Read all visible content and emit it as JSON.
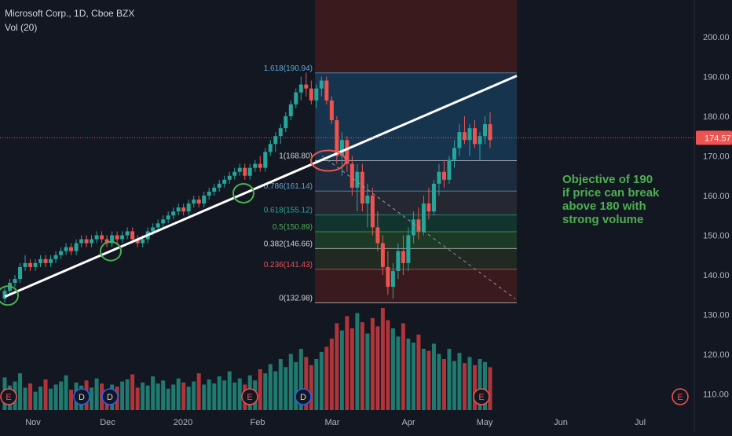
{
  "header": {
    "symbol_line": "Microsoft Corp., 1D, Cboe BZX",
    "volume_label": "Vol (20)"
  },
  "annotation": {
    "lines": [
      "Objective of 190",
      "if price can break",
      "above 180 with",
      "strong volume"
    ]
  },
  "colors": {
    "background": "#131722",
    "up": "#26a69a",
    "down": "#ef5350",
    "vol_up": "#1f7a6f",
    "vol_down": "#b0343a",
    "trendline": "#ffffff",
    "circle": "#4caf50",
    "price_line": "#ef5350",
    "annotation": "#4caf50"
  },
  "chart_data": {
    "type": "candlestick",
    "y_range": [
      105,
      210
    ],
    "y_ticks": [
      "200.00",
      "190.00",
      "180.00",
      "170.00",
      "160.00",
      "150.00",
      "140.00",
      "130.00",
      "120.00",
      "110.00"
    ],
    "y_tick_values": [
      200,
      190,
      180,
      170,
      160,
      150,
      140,
      130,
      120,
      110
    ],
    "x_ticks": [
      "Nov",
      "Dec",
      "2020",
      "Feb",
      "Mar",
      "Apr",
      "May",
      "Jun",
      "Jul"
    ],
    "last_price": "174.57",
    "last_price_value": 174.57,
    "fib_levels": [
      {
        "label": "1.618(190.94)",
        "value": 190.94,
        "band": "#17344f",
        "text": "#5fa8d3"
      },
      {
        "label": "1(168.80)",
        "value": 168.8,
        "band": "#1e2a3d",
        "text": "#d1d4dc"
      },
      {
        "label": "0.786(161.14)",
        "value": 161.14,
        "band": "#252830",
        "text": "#5fa8d3"
      },
      {
        "label": "0.618(155.12)",
        "value": 155.12,
        "band": "#11342f",
        "text": "#26a69a"
      },
      {
        "label": "0.5(150.89)",
        "value": 150.89,
        "band": "#1c3a25",
        "text": "#4caf50"
      },
      {
        "label": "0.382(146.66)",
        "value": 146.66,
        "band": "#202a22",
        "text": "#d1d4dc"
      },
      {
        "label": "0.236(141.43)",
        "value": 141.43,
        "band": "#3a1a1c",
        "text": "#ef5350"
      },
      {
        "label": "0(132.98)",
        "value": 132.98,
        "band": "#3a1a1c",
        "text": "#d1d4dc"
      }
    ],
    "candles": [
      [
        134,
        137,
        133,
        136
      ],
      [
        136,
        139,
        135,
        138
      ],
      [
        138,
        140,
        137,
        139
      ],
      [
        139,
        143,
        138,
        142
      ],
      [
        142,
        145,
        141,
        143
      ],
      [
        143,
        144,
        141,
        142
      ],
      [
        142,
        144,
        141,
        143
      ],
      [
        143,
        145,
        142,
        144
      ],
      [
        144,
        145,
        142,
        143
      ],
      [
        143,
        145,
        142,
        144
      ],
      [
        144,
        146,
        143,
        145
      ],
      [
        145,
        147,
        144,
        146
      ],
      [
        146,
        148,
        145,
        147
      ],
      [
        147,
        148,
        145,
        146
      ],
      [
        146,
        149,
        145,
        148
      ],
      [
        148,
        150,
        147,
        149
      ],
      [
        149,
        150,
        147,
        148
      ],
      [
        148,
        150,
        147,
        149
      ],
      [
        149,
        151,
        148,
        150
      ],
      [
        150,
        151,
        148,
        149
      ],
      [
        149,
        150,
        147,
        148
      ],
      [
        148,
        151,
        147,
        150
      ],
      [
        150,
        151,
        148,
        149
      ],
      [
        149,
        151,
        148,
        150
      ],
      [
        150,
        152,
        149,
        151
      ],
      [
        151,
        152,
        148,
        149
      ],
      [
        149,
        150,
        147,
        148
      ],
      [
        148,
        150,
        147,
        149
      ],
      [
        149,
        152,
        148,
        151
      ],
      [
        151,
        153,
        150,
        152
      ],
      [
        152,
        154,
        151,
        153
      ],
      [
        153,
        155,
        152,
        154
      ],
      [
        154,
        156,
        153,
        155
      ],
      [
        155,
        157,
        154,
        156
      ],
      [
        156,
        158,
        155,
        157
      ],
      [
        157,
        158,
        155,
        156
      ],
      [
        156,
        159,
        155,
        158
      ],
      [
        158,
        160,
        157,
        159
      ],
      [
        159,
        160,
        157,
        158
      ],
      [
        158,
        161,
        157,
        160
      ],
      [
        160,
        162,
        159,
        161
      ],
      [
        161,
        163,
        160,
        162
      ],
      [
        162,
        164,
        161,
        163
      ],
      [
        163,
        165,
        162,
        164
      ],
      [
        164,
        166,
        163,
        165
      ],
      [
        165,
        167,
        164,
        166
      ],
      [
        166,
        168,
        165,
        167
      ],
      [
        167,
        168,
        164,
        165
      ],
      [
        165,
        168,
        164,
        167
      ],
      [
        167,
        169,
        166,
        168
      ],
      [
        168,
        170,
        166,
        167
      ],
      [
        167,
        172,
        166,
        171
      ],
      [
        171,
        174,
        170,
        173
      ],
      [
        173,
        176,
        171,
        175
      ],
      [
        175,
        178,
        173,
        177
      ],
      [
        177,
        181,
        176,
        180
      ],
      [
        180,
        184,
        179,
        183
      ],
      [
        183,
        187,
        182,
        186
      ],
      [
        186,
        190,
        184,
        188
      ],
      [
        188,
        191,
        185,
        187
      ],
      [
        187,
        189,
        183,
        184
      ],
      [
        184,
        188,
        182,
        187
      ],
      [
        187,
        190,
        185,
        189
      ],
      [
        189,
        190,
        183,
        184
      ],
      [
        184,
        185,
        178,
        179
      ],
      [
        179,
        180,
        168,
        170
      ],
      [
        170,
        176,
        165,
        174
      ],
      [
        174,
        175,
        166,
        168
      ],
      [
        168,
        170,
        160,
        162
      ],
      [
        162,
        168,
        156,
        166
      ],
      [
        166,
        168,
        156,
        158
      ],
      [
        158,
        163,
        152,
        160
      ],
      [
        160,
        162,
        150,
        152
      ],
      [
        152,
        156,
        146,
        148
      ],
      [
        148,
        150,
        140,
        142
      ],
      [
        142,
        146,
        135,
        137
      ],
      [
        137,
        143,
        134,
        141
      ],
      [
        141,
        148,
        139,
        146
      ],
      [
        146,
        150,
        140,
        143
      ],
      [
        143,
        152,
        141,
        150
      ],
      [
        150,
        156,
        148,
        154
      ],
      [
        154,
        157,
        149,
        151
      ],
      [
        151,
        160,
        150,
        158
      ],
      [
        158,
        162,
        154,
        156
      ],
      [
        156,
        164,
        155,
        163
      ],
      [
        163,
        168,
        160,
        166
      ],
      [
        166,
        169,
        162,
        164
      ],
      [
        164,
        170,
        163,
        169
      ],
      [
        169,
        174,
        167,
        172
      ],
      [
        172,
        178,
        170,
        176
      ],
      [
        176,
        180,
        173,
        174
      ],
      [
        174,
        178,
        170,
        177
      ],
      [
        177,
        179,
        172,
        173
      ],
      [
        173,
        176,
        169,
        175
      ],
      [
        175,
        180,
        173,
        178
      ],
      [
        178,
        181,
        172,
        174
      ]
    ],
    "volumes": [
      0.32,
      0.24,
      0.28,
      0.36,
      0.22,
      0.26,
      0.18,
      0.23,
      0.3,
      0.21,
      0.25,
      0.28,
      0.34,
      0.2,
      0.27,
      0.24,
      0.29,
      0.22,
      0.31,
      0.26,
      0.19,
      0.25,
      0.23,
      0.28,
      0.3,
      0.35,
      0.22,
      0.27,
      0.24,
      0.33,
      0.26,
      0.29,
      0.21,
      0.25,
      0.31,
      0.27,
      0.23,
      0.28,
      0.36,
      0.25,
      0.3,
      0.26,
      0.33,
      0.29,
      0.38,
      0.27,
      0.31,
      0.25,
      0.34,
      0.29,
      0.4,
      0.36,
      0.45,
      0.38,
      0.5,
      0.42,
      0.55,
      0.47,
      0.6,
      0.52,
      0.44,
      0.5,
      0.57,
      0.62,
      0.7,
      0.85,
      0.78,
      0.92,
      0.8,
      0.95,
      0.86,
      0.75,
      0.9,
      0.82,
      1.0,
      0.88,
      0.8,
      0.72,
      0.85,
      0.7,
      0.66,
      0.74,
      0.6,
      0.58,
      0.65,
      0.55,
      0.5,
      0.6,
      0.48,
      0.56,
      0.46,
      0.52,
      0.44,
      0.5,
      0.47,
      0.42
    ],
    "event_markers": [
      {
        "label": "E",
        "kind": "earnings"
      },
      {
        "label": "D",
        "kind": "dividend"
      },
      {
        "label": "D",
        "kind": "dividend"
      },
      {
        "label": "E",
        "kind": "earnings"
      },
      {
        "label": "D",
        "kind": "dividend"
      },
      {
        "label": "E",
        "kind": "earnings"
      },
      {
        "label": "E",
        "kind": "earnings"
      }
    ]
  }
}
